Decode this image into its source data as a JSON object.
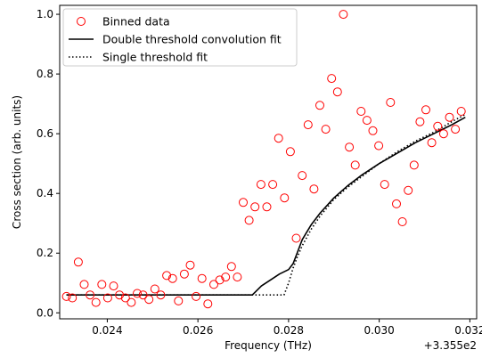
{
  "chart_data": {
    "type": "scatter",
    "xlabel": "Frequency (THz)",
    "ylabel": "Cross section (arb. units)",
    "x_offset_label": "+3.355e2",
    "xlim": [
      0.02295,
      0.03215
    ],
    "ylim": [
      -0.02,
      1.03
    ],
    "x_ticks": [
      0.024,
      0.026,
      0.028,
      0.03,
      0.032
    ],
    "x_tick_labels": [
      "0.024",
      "0.026",
      "0.028",
      "0.030",
      "0.032"
    ],
    "y_ticks": [
      0.0,
      0.2,
      0.4,
      0.6,
      0.8,
      1.0
    ],
    "y_tick_labels": [
      "0.0",
      "0.2",
      "0.4",
      "0.6",
      "0.8",
      "1.0"
    ],
    "legend_position": "top-left",
    "series": [
      {
        "name": "Binned data",
        "kind": "markers",
        "color": "#ff0000",
        "marker": "open-circle",
        "x": [
          0.0231,
          0.02323,
          0.02336,
          0.02349,
          0.02362,
          0.02375,
          0.02388,
          0.02401,
          0.02414,
          0.02427,
          0.0244,
          0.02453,
          0.02466,
          0.02479,
          0.02492,
          0.02505,
          0.02518,
          0.02531,
          0.02544,
          0.02557,
          0.0257,
          0.02583,
          0.02596,
          0.02609,
          0.02622,
          0.02635,
          0.02648,
          0.02661,
          0.02674,
          0.02687,
          0.027,
          0.02713,
          0.02726,
          0.02739,
          0.02752,
          0.02765,
          0.02778,
          0.02791,
          0.02804,
          0.02817,
          0.0283,
          0.02843,
          0.02856,
          0.02869,
          0.02882,
          0.02895,
          0.02908,
          0.02921,
          0.02934,
          0.02947,
          0.0296,
          0.02973,
          0.02986,
          0.02999,
          0.03012,
          0.03025,
          0.03038,
          0.03051,
          0.03064,
          0.03077,
          0.0309,
          0.03103,
          0.03116,
          0.03129,
          0.03142,
          0.03155,
          0.03168,
          0.03181
        ],
        "y": [
          0.055,
          0.05,
          0.17,
          0.095,
          0.06,
          0.035,
          0.095,
          0.05,
          0.09,
          0.06,
          0.05,
          0.035,
          0.065,
          0.06,
          0.045,
          0.08,
          0.06,
          0.125,
          0.115,
          0.04,
          0.13,
          0.16,
          0.055,
          0.115,
          0.03,
          0.095,
          0.11,
          0.12,
          0.155,
          0.12,
          0.37,
          0.31,
          0.355,
          0.43,
          0.355,
          0.43,
          0.585,
          0.385,
          0.54,
          0.25,
          0.46,
          0.63,
          0.415,
          0.695,
          0.615,
          0.785,
          0.74,
          1.0,
          0.555,
          0.495,
          0.675,
          0.645,
          0.61,
          0.56,
          0.43,
          0.705,
          0.365,
          0.305,
          0.41,
          0.495,
          0.64,
          0.68,
          0.57,
          0.625,
          0.6,
          0.655,
          0.615,
          0.675
        ]
      },
      {
        "name": "Double threshold convolution fit",
        "kind": "line",
        "color": "#000000",
        "style": "solid",
        "x": [
          0.0231,
          0.0272,
          0.0274,
          0.0276,
          0.0278,
          0.028,
          0.0281,
          0.0282,
          0.0283,
          0.0284,
          0.0285,
          0.0287,
          0.029,
          0.0293,
          0.0296,
          0.03,
          0.0304,
          0.0308,
          0.0312,
          0.0316,
          0.0319
        ],
        "y": [
          0.06,
          0.06,
          0.09,
          0.11,
          0.13,
          0.145,
          0.165,
          0.205,
          0.245,
          0.27,
          0.295,
          0.335,
          0.385,
          0.425,
          0.46,
          0.5,
          0.535,
          0.57,
          0.6,
          0.63,
          0.655
        ]
      },
      {
        "name": "Single threshold fit",
        "kind": "line",
        "color": "#000000",
        "style": "dotted",
        "x": [
          0.0231,
          0.0279,
          0.028,
          0.0281,
          0.0282,
          0.0283,
          0.0285,
          0.0287,
          0.029,
          0.0293,
          0.0296,
          0.03,
          0.0304,
          0.0308,
          0.0312,
          0.0316,
          0.0319
        ],
        "y": [
          0.06,
          0.06,
          0.1,
          0.15,
          0.19,
          0.225,
          0.28,
          0.325,
          0.38,
          0.42,
          0.455,
          0.5,
          0.54,
          0.575,
          0.605,
          0.64,
          0.665
        ]
      }
    ]
  },
  "legend": {
    "items": [
      {
        "label": "Binned data"
      },
      {
        "label": "Double threshold convolution fit"
      },
      {
        "label": "Single threshold fit"
      }
    ]
  }
}
